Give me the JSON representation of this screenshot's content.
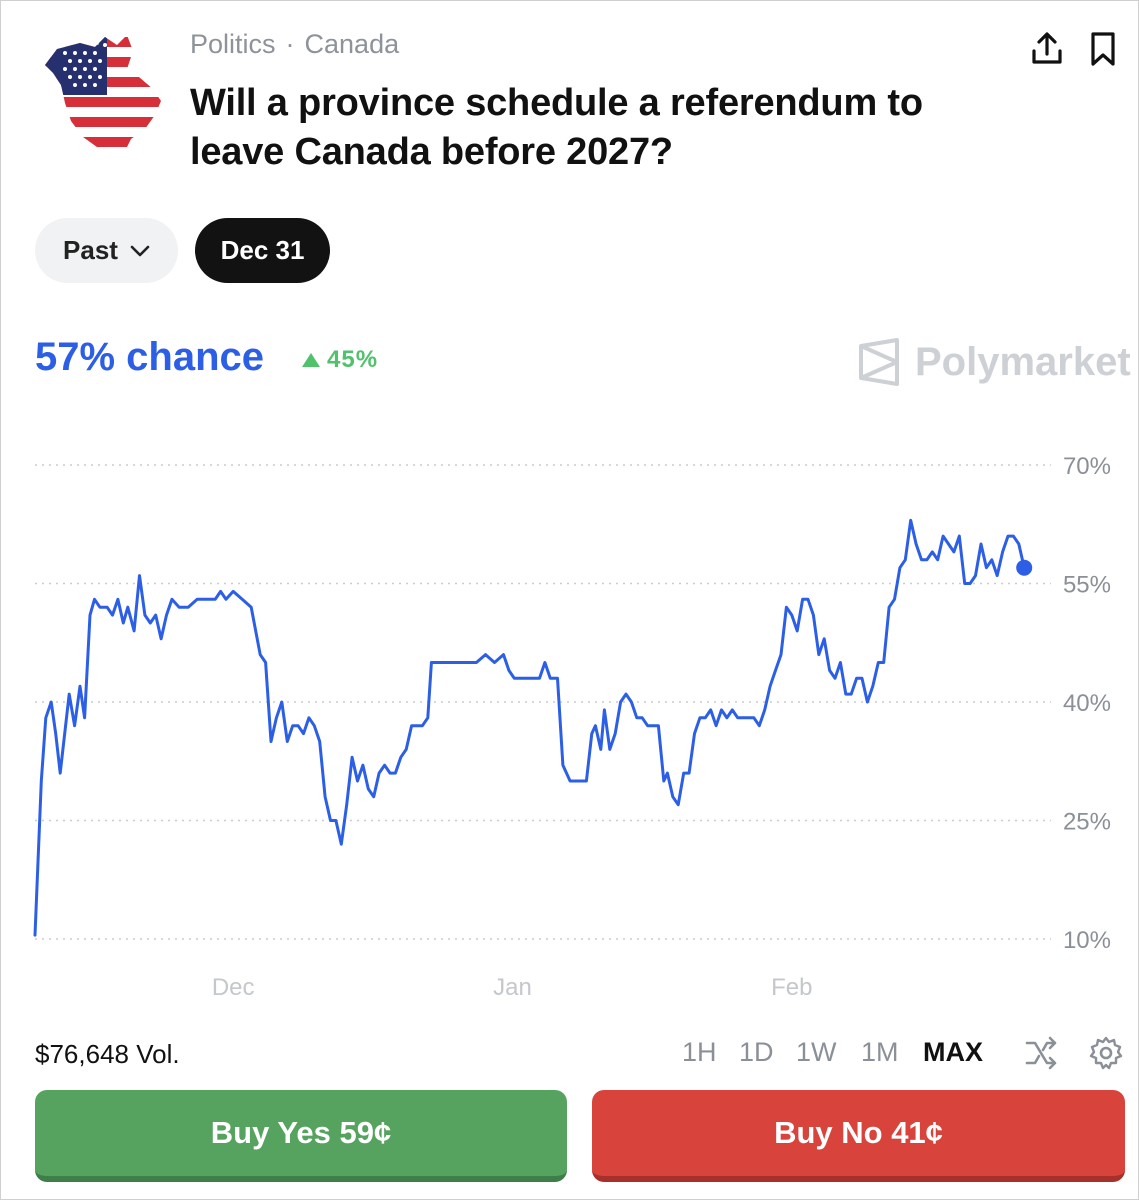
{
  "header": {
    "category": "Politics",
    "subcategory": "Canada",
    "separator": "·",
    "title": "Will a province schedule a referendum to leave Canada before 2027?",
    "flag_icon": "us-flag-canada-map-icon",
    "share_icon": "share-upload-icon",
    "bookmark_icon": "bookmark-icon"
  },
  "filters": {
    "past_label": "Past",
    "date_label": "Dec 31"
  },
  "stats": {
    "chance": "57% chance",
    "change": "45%",
    "change_direction": "up",
    "brand": "Polymarket"
  },
  "colors": {
    "accent": "#2c5fe6",
    "positive": "#4fc26b",
    "buy_yes": "#56a35f",
    "buy_no": "#d8443c"
  },
  "chart_data": {
    "type": "line",
    "title": "",
    "xlabel": "",
    "ylabel": "",
    "x_tick_labels": [
      "Dec",
      "Jan",
      "Feb"
    ],
    "y_tick_labels": [
      "70%",
      "55%",
      "40%",
      "25%",
      "10%"
    ],
    "y_ticks": [
      70,
      55,
      40,
      25,
      10
    ],
    "ylim": [
      10,
      70
    ],
    "grid": true,
    "x_range_days": [
      0,
      110
    ],
    "x_ticks_days": [
      22,
      53,
      84
    ],
    "series": [
      {
        "color": "#2c5fe6",
        "points": [
          [
            0,
            10.5
          ],
          [
            0.7,
            30
          ],
          [
            1.2,
            38
          ],
          [
            1.8,
            40
          ],
          [
            2.3,
            36
          ],
          [
            2.8,
            31
          ],
          [
            3.3,
            36
          ],
          [
            3.8,
            41
          ],
          [
            4.4,
            37
          ],
          [
            5.0,
            42
          ],
          [
            5.5,
            38
          ],
          [
            6.1,
            51
          ],
          [
            6.6,
            53
          ],
          [
            7.2,
            52
          ],
          [
            8.0,
            52
          ],
          [
            8.6,
            51
          ],
          [
            9.2,
            53
          ],
          [
            9.8,
            50
          ],
          [
            10.3,
            52
          ],
          [
            11.0,
            49
          ],
          [
            11.6,
            56
          ],
          [
            12.2,
            51
          ],
          [
            12.8,
            50
          ],
          [
            13.4,
            51
          ],
          [
            14.0,
            48
          ],
          [
            14.6,
            51
          ],
          [
            15.2,
            53
          ],
          [
            16.0,
            52
          ],
          [
            17.0,
            52
          ],
          [
            18.0,
            53
          ],
          [
            19.0,
            53
          ],
          [
            20.0,
            53
          ],
          [
            20.6,
            54
          ],
          [
            21.2,
            53
          ],
          [
            22.0,
            54
          ],
          [
            23.0,
            53
          ],
          [
            24.0,
            52
          ],
          [
            25.0,
            46
          ],
          [
            25.6,
            45
          ],
          [
            26.2,
            35
          ],
          [
            26.8,
            38
          ],
          [
            27.4,
            40
          ],
          [
            28.0,
            35
          ],
          [
            28.6,
            37
          ],
          [
            29.2,
            37
          ],
          [
            29.8,
            36
          ],
          [
            30.4,
            38
          ],
          [
            31.0,
            37
          ],
          [
            31.6,
            35
          ],
          [
            32.2,
            28
          ],
          [
            32.8,
            25
          ],
          [
            33.4,
            25
          ],
          [
            34.0,
            22
          ],
          [
            34.6,
            27
          ],
          [
            35.2,
            33
          ],
          [
            35.8,
            30
          ],
          [
            36.4,
            32
          ],
          [
            37.0,
            29
          ],
          [
            37.6,
            28
          ],
          [
            38.2,
            31
          ],
          [
            38.8,
            32
          ],
          [
            39.4,
            31
          ],
          [
            40.0,
            31
          ],
          [
            40.6,
            33
          ],
          [
            41.2,
            34
          ],
          [
            41.8,
            37
          ],
          [
            42.4,
            37
          ],
          [
            43.0,
            37
          ],
          [
            43.6,
            38
          ],
          [
            44.0,
            45
          ],
          [
            45.0,
            45
          ],
          [
            46.0,
            45
          ],
          [
            47.0,
            45
          ],
          [
            48.0,
            45
          ],
          [
            49.0,
            45
          ],
          [
            50.0,
            46
          ],
          [
            51.0,
            45
          ],
          [
            52.0,
            46
          ],
          [
            52.6,
            44
          ],
          [
            53.2,
            43
          ],
          [
            54.0,
            43
          ],
          [
            55.0,
            43
          ],
          [
            56.0,
            43
          ],
          [
            56.6,
            45
          ],
          [
            57.2,
            43
          ],
          [
            58.0,
            43
          ],
          [
            58.6,
            32
          ],
          [
            59.4,
            30
          ],
          [
            60.4,
            30
          ],
          [
            61.2,
            30
          ],
          [
            61.8,
            36
          ],
          [
            62.2,
            37
          ],
          [
            62.8,
            34
          ],
          [
            63.2,
            39
          ],
          [
            63.8,
            34
          ],
          [
            64.4,
            36
          ],
          [
            65.0,
            40
          ],
          [
            65.6,
            41
          ],
          [
            66.2,
            40
          ],
          [
            66.8,
            38
          ],
          [
            67.4,
            38
          ],
          [
            68.0,
            37
          ],
          [
            68.6,
            37
          ],
          [
            69.2,
            37
          ],
          [
            69.8,
            30
          ],
          [
            70.2,
            31
          ],
          [
            70.8,
            28
          ],
          [
            71.4,
            27
          ],
          [
            72.0,
            31
          ],
          [
            72.6,
            31
          ],
          [
            73.2,
            36
          ],
          [
            73.8,
            38
          ],
          [
            74.4,
            38
          ],
          [
            75.0,
            39
          ],
          [
            75.6,
            37
          ],
          [
            76.2,
            39
          ],
          [
            76.8,
            38
          ],
          [
            77.4,
            39
          ],
          [
            78.0,
            38
          ],
          [
            78.6,
            38
          ],
          [
            79.2,
            38
          ],
          [
            79.8,
            38
          ],
          [
            80.4,
            37
          ],
          [
            81.0,
            39
          ],
          [
            81.6,
            42
          ],
          [
            82.2,
            44
          ],
          [
            82.8,
            46
          ],
          [
            83.4,
            52
          ],
          [
            84.0,
            51
          ],
          [
            84.6,
            49
          ],
          [
            85.2,
            53
          ],
          [
            85.8,
            53
          ],
          [
            86.4,
            51
          ],
          [
            87.0,
            46
          ],
          [
            87.6,
            48
          ],
          [
            88.2,
            44
          ],
          [
            88.8,
            43
          ],
          [
            89.4,
            45
          ],
          [
            90.0,
            41
          ],
          [
            90.6,
            41
          ],
          [
            91.2,
            43
          ],
          [
            91.8,
            43
          ],
          [
            92.4,
            40
          ],
          [
            93.0,
            42
          ],
          [
            93.6,
            45
          ],
          [
            94.2,
            45
          ],
          [
            94.8,
            52
          ],
          [
            95.4,
            53
          ],
          [
            96.0,
            57
          ],
          [
            96.6,
            58
          ],
          [
            97.2,
            63
          ],
          [
            97.8,
            60
          ],
          [
            98.4,
            58
          ],
          [
            99.0,
            58
          ],
          [
            99.6,
            59
          ],
          [
            100.2,
            58
          ],
          [
            100.8,
            61
          ],
          [
            101.4,
            60
          ],
          [
            102.0,
            59
          ],
          [
            102.6,
            61
          ],
          [
            103.2,
            55
          ],
          [
            103.8,
            55
          ],
          [
            104.4,
            56
          ],
          [
            105.0,
            60
          ],
          [
            105.6,
            57
          ],
          [
            106.2,
            58
          ],
          [
            106.8,
            56
          ],
          [
            107.4,
            59
          ],
          [
            108.0,
            61
          ],
          [
            108.6,
            61
          ],
          [
            109.2,
            60
          ],
          [
            109.8,
            57
          ]
        ]
      }
    ]
  },
  "footer": {
    "volume": "$76,648 Vol.",
    "ranges": [
      "1H",
      "1D",
      "1W",
      "1M",
      "MAX"
    ],
    "active_range": "MAX",
    "shuffle_icon": "shuffle-icon",
    "settings_icon": "gear-icon"
  },
  "actions": {
    "buy_yes": "Buy Yes 59¢",
    "buy_no": "Buy No 41¢"
  }
}
